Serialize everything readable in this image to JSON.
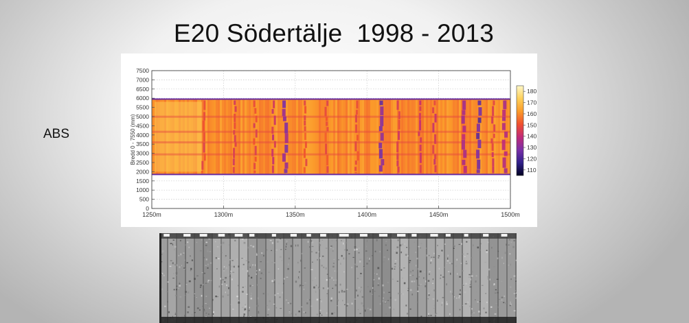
{
  "slide": {
    "title": "E20 Södertälje  1998 - 2013",
    "side_label": "ABS"
  },
  "chart_data": {
    "type": "heatmap",
    "title": "",
    "xlabel": "",
    "ylabel": "Bredd 0 - 7550 (mm)",
    "xlim": [
      1250,
      1500
    ],
    "ylim": [
      0,
      7500
    ],
    "x_ticks": [
      "1250m",
      "1300m",
      "1350m",
      "1400m",
      "1450m",
      "1500m"
    ],
    "x_tick_values": [
      1250,
      1300,
      1350,
      1400,
      1450,
      1500
    ],
    "y_ticks": [
      "0",
      "500",
      "1000",
      "1500",
      "2000",
      "2500",
      "3000",
      "3500",
      "4000",
      "4500",
      "5000",
      "5500",
      "6000",
      "6500",
      "7000",
      "7500"
    ],
    "y_tick_values": [
      0,
      500,
      1000,
      1500,
      2000,
      2500,
      3000,
      3500,
      4000,
      4500,
      5000,
      5500,
      6000,
      6500,
      7000,
      7500
    ],
    "grid": true,
    "data_band_y": [
      1850,
      5950
    ],
    "colorbar": {
      "ticks": [
        "110",
        "120",
        "130",
        "140",
        "150",
        "160",
        "170",
        "180"
      ],
      "tick_values": [
        110,
        120,
        130,
        140,
        150,
        160,
        170,
        180
      ],
      "range": [
        105,
        185
      ],
      "colors": [
        "#000020",
        "#30208a",
        "#7a2fa8",
        "#c02a78",
        "#f0502f",
        "#fb9b2a",
        "#fed05a",
        "#fff8c8"
      ]
    },
    "low_value_streaks": [
      {
        "x": 1286,
        "value": 145
      },
      {
        "x": 1308,
        "value": 142
      },
      {
        "x": 1322,
        "value": 143
      },
      {
        "x": 1335,
        "value": 138
      },
      {
        "x": 1343,
        "value": 128
      },
      {
        "x": 1357,
        "value": 146
      },
      {
        "x": 1372,
        "value": 145
      },
      {
        "x": 1393,
        "value": 146
      },
      {
        "x": 1410,
        "value": 124
      },
      {
        "x": 1422,
        "value": 142
      },
      {
        "x": 1437,
        "value": 138
      },
      {
        "x": 1447,
        "value": 140
      },
      {
        "x": 1468,
        "value": 132
      },
      {
        "x": 1478,
        "value": 122
      },
      {
        "x": 1488,
        "value": 140
      },
      {
        "x": 1496,
        "value": 133
      }
    ]
  }
}
